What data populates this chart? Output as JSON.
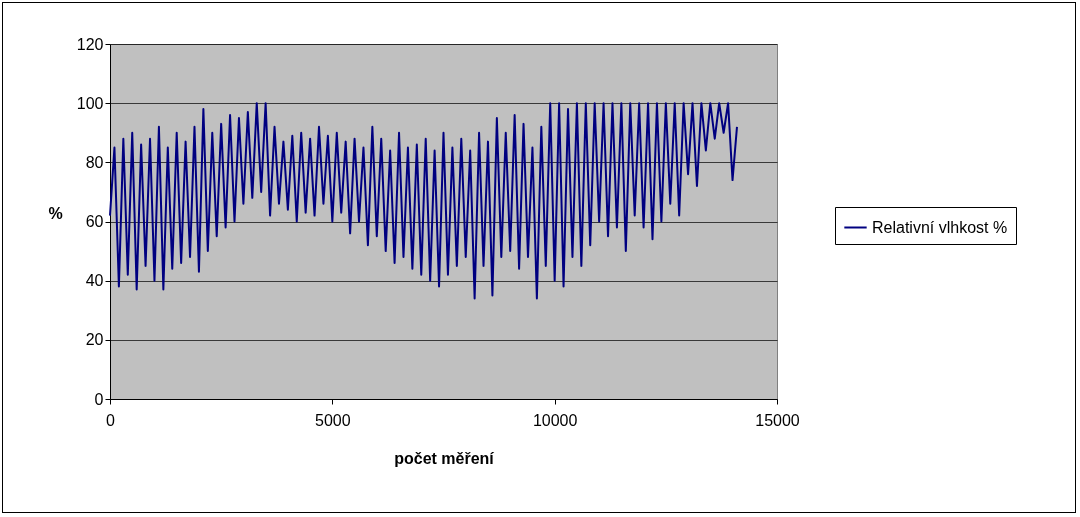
{
  "chart_data": {
    "type": "line",
    "xlabel": "počet měření",
    "ylabel": "%",
    "x": [
      0,
      100,
      200,
      300,
      400,
      500,
      600,
      700,
      800,
      900,
      1000,
      1100,
      1200,
      1300,
      1400,
      1500,
      1600,
      1700,
      1800,
      1900,
      2000,
      2100,
      2200,
      2300,
      2400,
      2500,
      2600,
      2700,
      2800,
      2900,
      3000,
      3100,
      3200,
      3300,
      3400,
      3500,
      3600,
      3700,
      3800,
      3900,
      4000,
      4100,
      4200,
      4300,
      4400,
      4500,
      4600,
      4700,
      4800,
      4900,
      5000,
      5100,
      5200,
      5300,
      5400,
      5500,
      5600,
      5700,
      5800,
      5900,
      6000,
      6100,
      6200,
      6300,
      6400,
      6500,
      6600,
      6700,
      6800,
      6900,
      7000,
      7100,
      7200,
      7300,
      7400,
      7500,
      7600,
      7700,
      7800,
      7900,
      8000,
      8100,
      8200,
      8300,
      8400,
      8500,
      8600,
      8700,
      8800,
      8900,
      9000,
      9100,
      9200,
      9300,
      9400,
      9500,
      9600,
      9700,
      9800,
      9900,
      10000,
      10100,
      10200,
      10300,
      10400,
      10500,
      10600,
      10700,
      10800,
      10900,
      11000,
      11100,
      11200,
      11300,
      11400,
      11500,
      11600,
      11700,
      11800,
      11900,
      12000,
      12100,
      12200,
      12300,
      12400,
      12500,
      12600,
      12700,
      12800,
      12900,
      13000,
      13100,
      13200,
      13300,
      13400,
      13500,
      13600,
      13700,
      13800,
      13900,
      14000,
      14100
    ],
    "series": [
      {
        "name": "Relativní vlhkost %",
        "color": "#000080",
        "values": [
          62,
          85,
          38,
          88,
          42,
          90,
          37,
          86,
          45,
          88,
          40,
          92,
          37,
          85,
          44,
          90,
          46,
          87,
          48,
          92,
          43,
          98,
          50,
          90,
          55,
          93,
          58,
          96,
          60,
          95,
          66,
          97,
          68,
          100,
          70,
          100,
          62,
          92,
          66,
          87,
          64,
          89,
          60,
          90,
          63,
          88,
          62,
          92,
          66,
          89,
          60,
          90,
          63,
          87,
          56,
          88,
          60,
          85,
          52,
          92,
          55,
          88,
          50,
          84,
          46,
          90,
          48,
          85,
          44,
          86,
          42,
          88,
          40,
          84,
          38,
          90,
          42,
          85,
          45,
          88,
          48,
          84,
          34,
          90,
          45,
          87,
          35,
          95,
          48,
          90,
          50,
          96,
          44,
          93,
          48,
          85,
          34,
          92,
          45,
          100,
          40,
          100,
          38,
          98,
          48,
          100,
          45,
          100,
          52,
          100,
          60,
          100,
          55,
          100,
          58,
          100,
          50,
          100,
          62,
          100,
          58,
          100,
          54,
          100,
          60,
          100,
          66,
          100,
          62,
          100,
          76,
          100,
          72,
          100,
          84,
          100,
          88,
          100,
          90,
          100,
          74,
          92
        ]
      }
    ],
    "xlim": [
      0,
      15000
    ],
    "xticks": [
      0,
      5000,
      10000,
      15000
    ],
    "ylim": [
      0,
      120
    ],
    "yticks": [
      0,
      20,
      40,
      60,
      80,
      100,
      120
    ],
    "grid": "y",
    "legend": "right",
    "line_style": "solid",
    "marker": "none"
  }
}
